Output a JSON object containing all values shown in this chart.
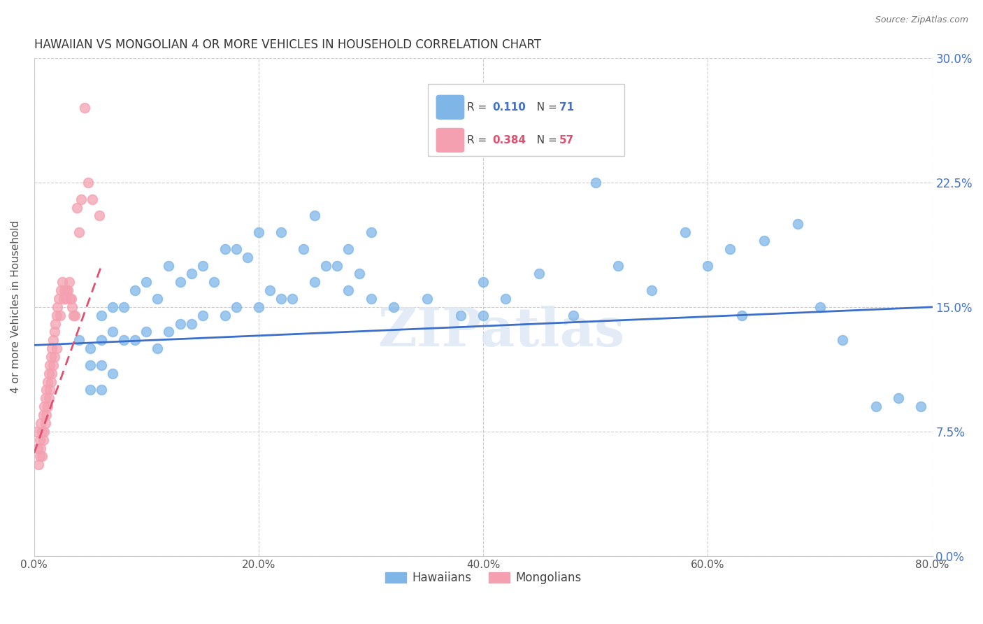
{
  "title": "HAWAIIAN VS MONGOLIAN 4 OR MORE VEHICLES IN HOUSEHOLD CORRELATION CHART",
  "source": "Source: ZipAtlas.com",
  "ylabel": "4 or more Vehicles in Household",
  "x_tick_labels": [
    "0.0%",
    "20.0%",
    "40.0%",
    "60.0%",
    "80.0%"
  ],
  "x_tick_values": [
    0.0,
    0.2,
    0.4,
    0.6,
    0.8
  ],
  "y_tick_labels": [
    "0.0%",
    "7.5%",
    "15.0%",
    "22.5%",
    "30.0%"
  ],
  "y_tick_values": [
    0.0,
    0.075,
    0.15,
    0.225,
    0.3
  ],
  "xlim": [
    0.0,
    0.8
  ],
  "ylim": [
    0.0,
    0.3
  ],
  "hawaiian_R": 0.11,
  "hawaiian_N": 71,
  "mongolian_R": 0.384,
  "mongolian_N": 57,
  "hawaiian_color": "#7eb6e8",
  "mongolian_color": "#f4a0b0",
  "hawaiian_line_color": "#3b6fc9",
  "mongolian_line_color": "#e05070",
  "watermark": "ZIPatlas",
  "hawaiian_scatter_x": [
    0.04,
    0.05,
    0.05,
    0.05,
    0.06,
    0.06,
    0.06,
    0.06,
    0.07,
    0.07,
    0.07,
    0.08,
    0.08,
    0.09,
    0.09,
    0.1,
    0.1,
    0.11,
    0.11,
    0.12,
    0.12,
    0.13,
    0.13,
    0.14,
    0.14,
    0.15,
    0.15,
    0.16,
    0.17,
    0.17,
    0.18,
    0.18,
    0.19,
    0.2,
    0.2,
    0.21,
    0.22,
    0.22,
    0.23,
    0.24,
    0.25,
    0.25,
    0.26,
    0.27,
    0.28,
    0.28,
    0.29,
    0.3,
    0.3,
    0.32,
    0.35,
    0.38,
    0.4,
    0.4,
    0.42,
    0.45,
    0.48,
    0.5,
    0.52,
    0.55,
    0.58,
    0.6,
    0.62,
    0.63,
    0.65,
    0.68,
    0.7,
    0.72,
    0.75,
    0.77,
    0.79
  ],
  "hawaiian_scatter_y": [
    0.13,
    0.125,
    0.115,
    0.1,
    0.145,
    0.13,
    0.115,
    0.1,
    0.15,
    0.135,
    0.11,
    0.15,
    0.13,
    0.16,
    0.13,
    0.165,
    0.135,
    0.155,
    0.125,
    0.175,
    0.135,
    0.165,
    0.14,
    0.17,
    0.14,
    0.175,
    0.145,
    0.165,
    0.185,
    0.145,
    0.185,
    0.15,
    0.18,
    0.195,
    0.15,
    0.16,
    0.195,
    0.155,
    0.155,
    0.185,
    0.205,
    0.165,
    0.175,
    0.175,
    0.185,
    0.16,
    0.17,
    0.195,
    0.155,
    0.15,
    0.155,
    0.145,
    0.165,
    0.145,
    0.155,
    0.17,
    0.145,
    0.225,
    0.175,
    0.16,
    0.195,
    0.175,
    0.185,
    0.145,
    0.19,
    0.2,
    0.15,
    0.13,
    0.09,
    0.095,
    0.09
  ],
  "mongolian_scatter_x": [
    0.002,
    0.003,
    0.004,
    0.005,
    0.005,
    0.006,
    0.006,
    0.007,
    0.007,
    0.008,
    0.008,
    0.009,
    0.009,
    0.01,
    0.01,
    0.011,
    0.011,
    0.012,
    0.012,
    0.013,
    0.013,
    0.014,
    0.014,
    0.015,
    0.015,
    0.016,
    0.016,
    0.017,
    0.017,
    0.018,
    0.018,
    0.019,
    0.02,
    0.02,
    0.021,
    0.022,
    0.023,
    0.024,
    0.025,
    0.026,
    0.027,
    0.028,
    0.029,
    0.03,
    0.031,
    0.032,
    0.033,
    0.034,
    0.035,
    0.036,
    0.038,
    0.04,
    0.042,
    0.045,
    0.048,
    0.052,
    0.058
  ],
  "mongolian_scatter_y": [
    0.075,
    0.065,
    0.055,
    0.07,
    0.06,
    0.08,
    0.065,
    0.075,
    0.06,
    0.085,
    0.07,
    0.09,
    0.075,
    0.095,
    0.08,
    0.1,
    0.085,
    0.105,
    0.09,
    0.11,
    0.095,
    0.115,
    0.1,
    0.12,
    0.105,
    0.125,
    0.11,
    0.13,
    0.115,
    0.135,
    0.12,
    0.14,
    0.145,
    0.125,
    0.15,
    0.155,
    0.145,
    0.16,
    0.165,
    0.155,
    0.16,
    0.155,
    0.16,
    0.16,
    0.165,
    0.155,
    0.155,
    0.15,
    0.145,
    0.145,
    0.21,
    0.195,
    0.215,
    0.27,
    0.225,
    0.215,
    0.205
  ],
  "hawaiian_line_x": [
    0.0,
    0.8
  ],
  "hawaiian_line_y": [
    0.127,
    0.15
  ],
  "mongolian_line_x": [
    0.0,
    0.06
  ],
  "mongolian_line_y": [
    0.062,
    0.175
  ]
}
